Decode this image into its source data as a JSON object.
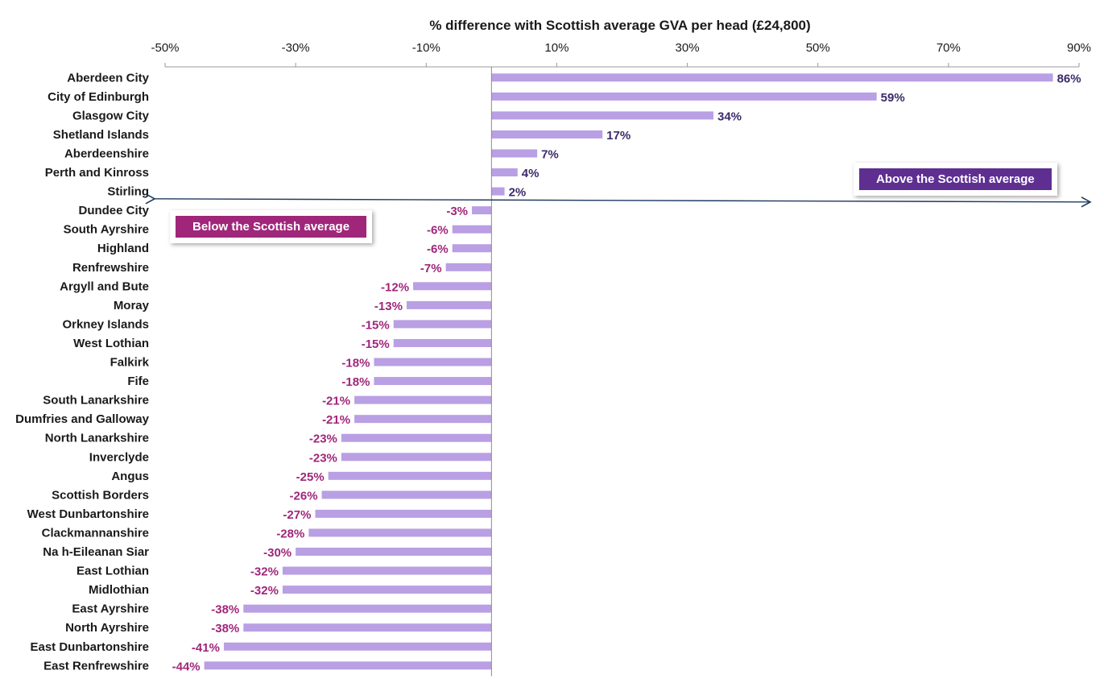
{
  "chart_data": {
    "type": "bar",
    "orientation": "horizontal",
    "title": "% difference with Scottish average GVA per head (£24,800)",
    "xlim": [
      -50,
      90
    ],
    "xticks": [
      "-50%",
      "-30%",
      "-10%",
      "10%",
      "30%",
      "50%",
      "70%",
      "90%"
    ],
    "xtick_values": [
      -50,
      -30,
      -10,
      10,
      30,
      50,
      70,
      90
    ],
    "x_axis_position": "top",
    "grid": false,
    "categories": [
      "Aberdeen City",
      "City of Edinburgh",
      "Glasgow City",
      "Shetland Islands",
      "Aberdeenshire",
      "Perth and Kinross",
      "Stirling",
      "Dundee City",
      "South Ayrshire",
      "Highland",
      "Renfrewshire",
      "Argyll and Bute",
      "Moray",
      "Orkney Islands",
      "West Lothian",
      "Falkirk",
      "Fife",
      "South Lanarkshire",
      "Dumfries and Galloway",
      "North Lanarkshire",
      "Inverclyde",
      "Angus",
      "Scottish Borders",
      "West Dunbartonshire",
      "Clackmannanshire",
      "Na h-Eileanan Siar",
      "East Lothian",
      "Midlothian",
      "East Ayrshire",
      "North Ayrshire",
      "East Dunbartonshire",
      "East Renfrewshire"
    ],
    "values": [
      86,
      59,
      34,
      17,
      7,
      4,
      2,
      -3,
      -6,
      -6,
      -7,
      -12,
      -13,
      -15,
      -15,
      -18,
      -18,
      -21,
      -21,
      -23,
      -23,
      -25,
      -26,
      -27,
      -28,
      -30,
      -32,
      -32,
      -38,
      -38,
      -41,
      -44
    ],
    "data_labels": [
      "86%",
      "59%",
      "34%",
      "17%",
      "7%",
      "4%",
      "2%",
      "-3%",
      "-6%",
      "-6%",
      "-7%",
      "-12%",
      "-13%",
      "-15%",
      "-15%",
      "-18%",
      "-18%",
      "-21%",
      "-21%",
      "-23%",
      "-23%",
      "-25%",
      "-26%",
      "-27%",
      "-28%",
      "-30%",
      "-32%",
      "-32%",
      "-38%",
      "-38%",
      "-41%",
      "-44%"
    ],
    "bar_color": "#b99fe3",
    "positive_label_color": "#3b2a6a",
    "negative_label_color": "#a0267a",
    "annotations": {
      "above": {
        "text": "Above the Scottish average",
        "color": "#5e2f91"
      },
      "below": {
        "text": "Below the Scottish average",
        "color": "#a0267a"
      }
    },
    "arrow_color": "#1f3a5f"
  }
}
